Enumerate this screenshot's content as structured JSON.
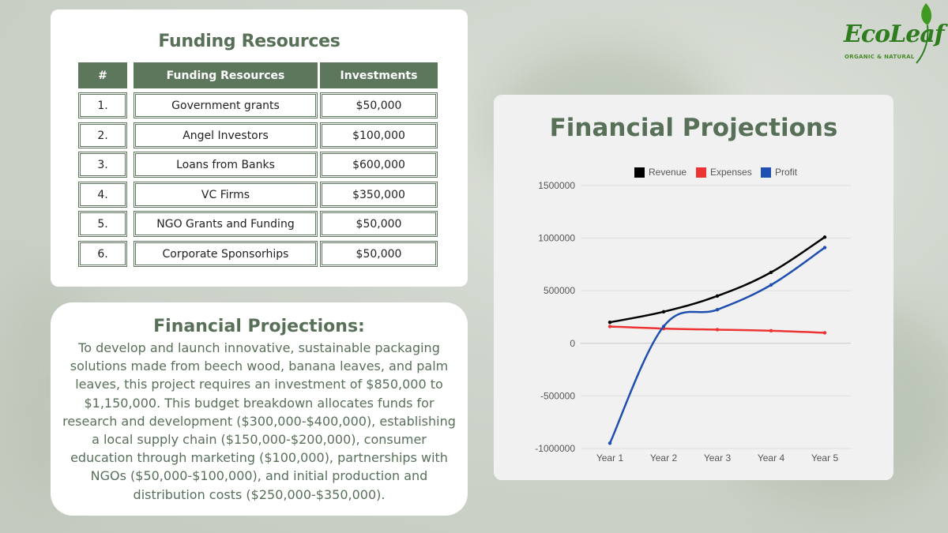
{
  "logo": {
    "name": "EcoLeaf",
    "tagline": "ORGANIC & NATURAL",
    "brand_color": "#2f7d1f"
  },
  "funding": {
    "title": "Funding Resources",
    "headers": [
      "#",
      "Funding Resources",
      "Investments"
    ],
    "rows": [
      [
        "1.",
        "Government grants",
        "$50,000"
      ],
      [
        "2.",
        "Angel Investors",
        "$100,000"
      ],
      [
        "3.",
        "Loans from Banks",
        "$600,000"
      ],
      [
        "4.",
        "VC Firms",
        "$350,000"
      ],
      [
        "5.",
        "NGO Grants and Funding",
        "$50,000"
      ],
      [
        "6.",
        "Corporate Sponsorhips",
        "$50,000"
      ]
    ],
    "header_color": "#5d775c"
  },
  "projections_text": {
    "title": "Financial Projections:",
    "body": "To develop and launch innovative, sustainable packaging solutions made from beech wood, banana leaves, and palm leaves, this project requires an investment of $850,000 to $1,150,000. This budget breakdown allocates funds for research and development ($300,000-$400,000), establishing a local supply chain ($150,000-$200,000), consumer education through marketing ($100,000), partnerships with NGOs ($50,000-$100,000), and initial production and distribution costs ($250,000-$350,000)."
  },
  "chart_data": {
    "type": "line",
    "title": "Financial Projections",
    "categories": [
      "Year 1",
      "Year 2",
      "Year 3",
      "Year 4",
      "Year 5"
    ],
    "series": [
      {
        "name": "Revenue",
        "color": "#000000",
        "values": [
          200000,
          300000,
          450000,
          675000,
          1010000
        ]
      },
      {
        "name": "Expenses",
        "color": "#ee3333",
        "values": [
          160000,
          140000,
          130000,
          120000,
          100000
        ]
      },
      {
        "name": "Profit",
        "color": "#1f4fb0",
        "values": [
          -950000,
          160000,
          320000,
          555000,
          910000
        ]
      }
    ],
    "yticks": [
      1500000,
      1000000,
      500000,
      0,
      -500000,
      -1000000
    ],
    "ytick_labels": [
      "1500000",
      "1000000",
      "500000",
      "0",
      "-500000",
      "-1000000"
    ],
    "ylim": [
      -1000000,
      1500000
    ],
    "legend_position": "top",
    "grid": true,
    "smooth": true
  }
}
